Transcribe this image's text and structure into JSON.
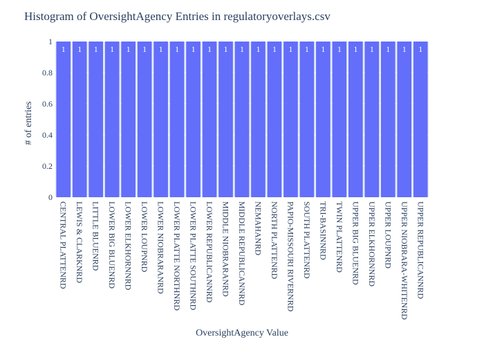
{
  "chart_data": {
    "type": "bar",
    "title": "Histogram of OversightAgency Entries in regulatoryoverlays.csv",
    "xlabel": "OversightAgency Value",
    "ylabel": "# of entries",
    "categories": [
      "CENTRAL PLATTENRD",
      "LEWIS & CLARKNRD",
      "LITTLE BLUENRD",
      "LOWER BIG BLUENRD",
      "LOWER ELKHORNNRD",
      "LOWER LOUPNRD",
      "LOWER NIOBRARANRD",
      "LOWER PLATTE NORTHNRD",
      "LOWER PLATTE SOUTHNRD",
      "LOWER REPUBLICANNRD",
      "MIDDLE NIOBRARANRD",
      "MIDDLE REPUBLICANNRD",
      "NEMAHANRD",
      "NORTH PLATTENRD",
      "PAPIO-MISSOURI RIVERNRD",
      "SOUTH PLATTENRD",
      "TRI-BASINNRD",
      "TWIN PLATTENRD",
      "UPPER BIG BLUENRD",
      "UPPER ELKHORNNRD",
      "UPPER LOUPNRD",
      "UPPER NIOBRARA-WHITENRD",
      "UPPER REPUBLICANNRD"
    ],
    "values": [
      1,
      1,
      1,
      1,
      1,
      1,
      1,
      1,
      1,
      1,
      1,
      1,
      1,
      1,
      1,
      1,
      1,
      1,
      1,
      1,
      1,
      1,
      1
    ],
    "ylim": [
      0,
      1
    ],
    "y_ticks": [
      "0",
      "0.2",
      "0.4",
      "0.6",
      "0.8",
      "1"
    ],
    "grid": true,
    "colors": {
      "bar": "#636efa",
      "plot_bg": "#e5ecf6",
      "grid": "#ffffff",
      "text": "#2a3f5f"
    }
  }
}
